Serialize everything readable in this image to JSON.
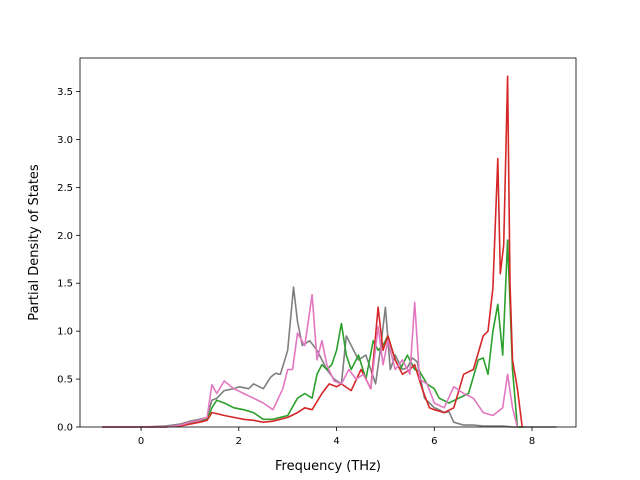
{
  "chart_data": {
    "type": "line",
    "title": "",
    "xlabel": "Frequency (THz)",
    "ylabel": "Partial Density of States",
    "xlim": [
      -1.25,
      8.9
    ],
    "ylim": [
      0.0,
      3.85
    ],
    "xticks": [
      0,
      2,
      4,
      6,
      8
    ],
    "yticks": [
      0.0,
      0.5,
      1.0,
      1.5,
      2.0,
      2.5,
      3.0,
      3.5
    ],
    "xtick_labels": [
      "0",
      "2",
      "4",
      "6",
      "8"
    ],
    "ytick_labels": [
      "0.0",
      "0.5",
      "1.0",
      "1.5",
      "2.0",
      "2.5",
      "3.0",
      "3.5"
    ],
    "grid": false,
    "legend": "none",
    "series": [
      {
        "color": "#7f7f7f",
        "x": [
          -0.8,
          0.0,
          0.5,
          0.8,
          1.0,
          1.2,
          1.35,
          1.45,
          1.55,
          1.7,
          1.9,
          2.0,
          2.2,
          2.3,
          2.5,
          2.65,
          2.75,
          2.85,
          3.0,
          3.12,
          3.2,
          3.3,
          3.45,
          3.6,
          3.8,
          3.95,
          4.1,
          4.2,
          4.3,
          4.45,
          4.6,
          4.7,
          4.8,
          4.9,
          5.0,
          5.1,
          5.2,
          5.35,
          5.45,
          5.55,
          5.65,
          5.8,
          5.9,
          6.0,
          6.1,
          6.2,
          6.3,
          6.4,
          6.6,
          6.8,
          7.0,
          7.2,
          7.4,
          7.6,
          8.0,
          8.5
        ],
        "values": [
          0.0,
          0.0,
          0.01,
          0.03,
          0.06,
          0.08,
          0.1,
          0.28,
          0.3,
          0.38,
          0.4,
          0.42,
          0.4,
          0.45,
          0.4,
          0.52,
          0.56,
          0.55,
          0.8,
          1.46,
          1.1,
          0.85,
          0.9,
          0.8,
          0.6,
          0.5,
          0.45,
          0.95,
          0.85,
          0.7,
          0.75,
          0.6,
          0.45,
          0.82,
          1.25,
          0.6,
          0.75,
          0.6,
          0.62,
          0.72,
          0.68,
          0.3,
          0.25,
          0.2,
          0.18,
          0.15,
          0.16,
          0.05,
          0.02,
          0.02,
          0.01,
          0.01,
          0.01,
          0.0,
          0.0,
          0.0
        ]
      },
      {
        "color": "#2ca02c",
        "x": [
          -0.8,
          0.0,
          0.5,
          0.8,
          1.0,
          1.2,
          1.35,
          1.45,
          1.55,
          1.7,
          1.9,
          2.1,
          2.3,
          2.5,
          2.7,
          3.0,
          3.2,
          3.35,
          3.5,
          3.6,
          3.7,
          3.8,
          3.9,
          4.0,
          4.1,
          4.2,
          4.3,
          4.45,
          4.6,
          4.75,
          4.85,
          4.95,
          5.05,
          5.2,
          5.3,
          5.45,
          5.6,
          5.7,
          5.85,
          6.0,
          6.1,
          6.3,
          6.5,
          6.7,
          6.9,
          7.0,
          7.1,
          7.2,
          7.3,
          7.4,
          7.5,
          7.6,
          7.7,
          7.8
        ],
        "values": [
          0.0,
          0.0,
          0.0,
          0.02,
          0.04,
          0.06,
          0.08,
          0.2,
          0.28,
          0.25,
          0.2,
          0.18,
          0.15,
          0.08,
          0.08,
          0.12,
          0.3,
          0.35,
          0.3,
          0.55,
          0.65,
          0.6,
          0.65,
          0.8,
          1.08,
          0.75,
          0.6,
          0.75,
          0.5,
          0.9,
          0.8,
          0.85,
          0.95,
          0.7,
          0.6,
          0.75,
          0.6,
          0.58,
          0.45,
          0.4,
          0.3,
          0.25,
          0.3,
          0.35,
          0.7,
          0.72,
          0.55,
          1.0,
          1.28,
          0.75,
          1.95,
          0.6,
          0.0,
          0.0
        ]
      },
      {
        "color": "#d62728",
        "x": [
          -0.8,
          0.0,
          0.5,
          0.8,
          1.0,
          1.2,
          1.35,
          1.45,
          1.55,
          1.7,
          1.9,
          2.1,
          2.3,
          2.5,
          2.7,
          3.0,
          3.2,
          3.35,
          3.5,
          3.7,
          3.85,
          4.0,
          4.1,
          4.3,
          4.5,
          4.7,
          4.85,
          4.95,
          5.05,
          5.2,
          5.35,
          5.5,
          5.6,
          5.75,
          5.9,
          6.0,
          6.2,
          6.4,
          6.6,
          6.8,
          7.0,
          7.1,
          7.2,
          7.3,
          7.35,
          7.42,
          7.5,
          7.55,
          7.6,
          7.7,
          7.8
        ],
        "values": [
          0.0,
          0.0,
          0.0,
          0.01,
          0.03,
          0.05,
          0.07,
          0.15,
          0.14,
          0.12,
          0.1,
          0.08,
          0.07,
          0.05,
          0.06,
          0.1,
          0.15,
          0.2,
          0.18,
          0.35,
          0.45,
          0.42,
          0.45,
          0.38,
          0.6,
          0.4,
          1.25,
          0.8,
          0.95,
          0.7,
          0.55,
          0.6,
          0.65,
          0.4,
          0.2,
          0.18,
          0.15,
          0.2,
          0.55,
          0.6,
          0.95,
          1.0,
          1.45,
          2.8,
          1.6,
          1.9,
          3.66,
          1.5,
          0.7,
          0.4,
          0.0
        ]
      },
      {
        "color": "#e377c2",
        "x": [
          -0.8,
          0.0,
          0.5,
          0.8,
          1.0,
          1.2,
          1.35,
          1.45,
          1.55,
          1.7,
          1.9,
          2.1,
          2.3,
          2.5,
          2.7,
          2.9,
          3.0,
          3.1,
          3.2,
          3.35,
          3.5,
          3.6,
          3.7,
          3.8,
          3.95,
          4.1,
          4.25,
          4.4,
          4.55,
          4.7,
          4.85,
          4.95,
          5.05,
          5.2,
          5.35,
          5.5,
          5.6,
          5.7,
          5.85,
          6.0,
          6.2,
          6.4,
          6.6,
          6.8,
          7.0,
          7.2,
          7.4,
          7.5,
          7.6,
          7.7
        ],
        "values": [
          0.0,
          0.0,
          0.0,
          0.02,
          0.05,
          0.07,
          0.1,
          0.44,
          0.35,
          0.48,
          0.4,
          0.35,
          0.3,
          0.25,
          0.18,
          0.4,
          0.6,
          0.6,
          0.98,
          0.85,
          1.38,
          0.7,
          0.9,
          0.65,
          0.48,
          0.45,
          0.6,
          0.5,
          0.55,
          0.4,
          1.05,
          0.65,
          0.9,
          0.6,
          0.7,
          0.55,
          1.3,
          0.5,
          0.45,
          0.25,
          0.2,
          0.42,
          0.35,
          0.3,
          0.15,
          0.12,
          0.2,
          0.55,
          0.2,
          0.0
        ]
      }
    ]
  }
}
